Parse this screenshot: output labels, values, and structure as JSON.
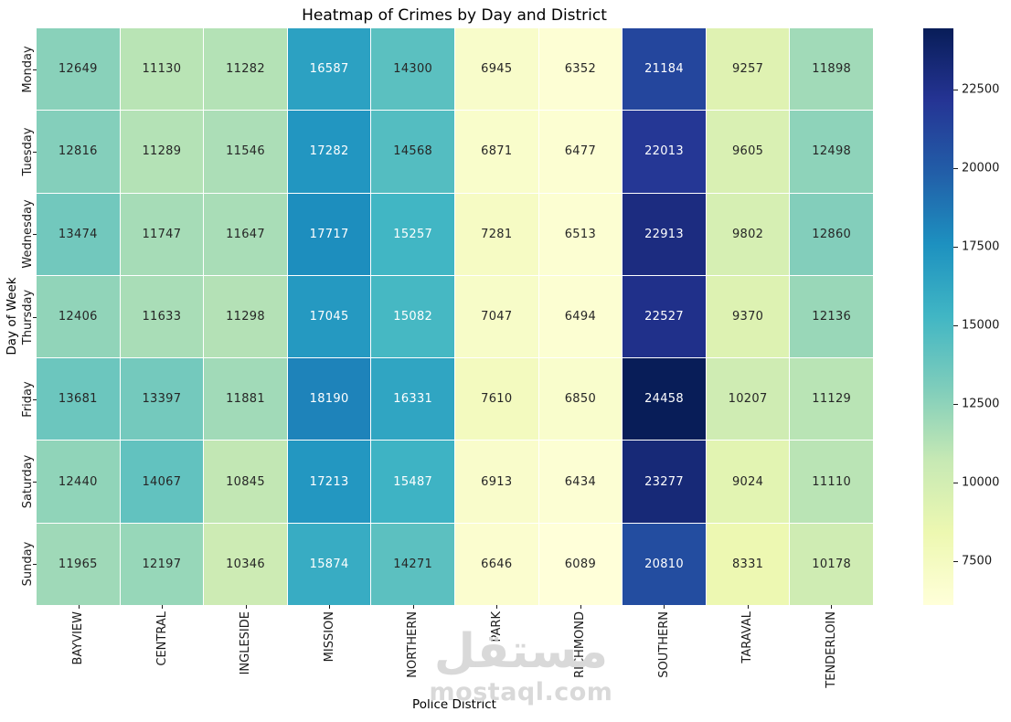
{
  "watermark": {
    "arabic": "مستقل",
    "domain": "mostaql.com",
    "color": "#d9d9d9"
  },
  "colors": {
    "background": "#ffffff",
    "annotation_dark": "#262626",
    "annotation_light": "#ffffff",
    "tick_label": "#1a1a1a",
    "cell_grid_line": "#ffffff"
  },
  "chart_data": {
    "type": "heatmap",
    "title": "Heatmap of Crimes by Day and District",
    "xlabel": "Police District",
    "ylabel": "Day of Week",
    "columns": [
      "BAYVIEW",
      "CENTRAL",
      "INGLESIDE",
      "MISSION",
      "NORTHERN",
      "PARK",
      "RICHMOND",
      "SOUTHERN",
      "TARAVAL",
      "TENDERLOIN"
    ],
    "rows": [
      "Monday",
      "Tuesday",
      "Wednesday",
      "Thursday",
      "Friday",
      "Saturday",
      "Sunday"
    ],
    "values": [
      [
        12649,
        11130,
        11282,
        16587,
        14300,
        6945,
        6352,
        21184,
        9257,
        11898
      ],
      [
        12816,
        11289,
        11546,
        17282,
        14568,
        6871,
        6477,
        22013,
        9605,
        12498
      ],
      [
        13474,
        11747,
        11647,
        17717,
        15257,
        7281,
        6513,
        22913,
        9802,
        12860
      ],
      [
        12406,
        11633,
        11298,
        17045,
        15082,
        7047,
        6494,
        22527,
        9370,
        12136
      ],
      [
        13681,
        13397,
        11881,
        18190,
        16331,
        7610,
        6850,
        24458,
        10207,
        11129
      ],
      [
        12440,
        14067,
        10845,
        17213,
        15487,
        6913,
        6434,
        23277,
        9024,
        11110
      ],
      [
        11965,
        12197,
        10346,
        15874,
        14271,
        6646,
        6089,
        20810,
        8331,
        10178
      ]
    ],
    "vmin": 6089,
    "vmax": 24458,
    "colormap": "YlGnBu",
    "colormap_stops": [
      {
        "pos": 0.0,
        "color": "#ffffd9"
      },
      {
        "pos": 0.125,
        "color": "#edf8b1"
      },
      {
        "pos": 0.25,
        "color": "#c7e9b4"
      },
      {
        "pos": 0.375,
        "color": "#7fcdbb"
      },
      {
        "pos": 0.5,
        "color": "#41b6c4"
      },
      {
        "pos": 0.625,
        "color": "#1d91c0"
      },
      {
        "pos": 0.75,
        "color": "#225ea8"
      },
      {
        "pos": 0.875,
        "color": "#253494"
      },
      {
        "pos": 1.0,
        "color": "#081d58"
      }
    ],
    "colorbar_ticks": [
      22500,
      20000,
      17500,
      15000,
      12500,
      10000,
      7500
    ],
    "colorbar_position": "right",
    "grid": false,
    "annotated": true
  }
}
